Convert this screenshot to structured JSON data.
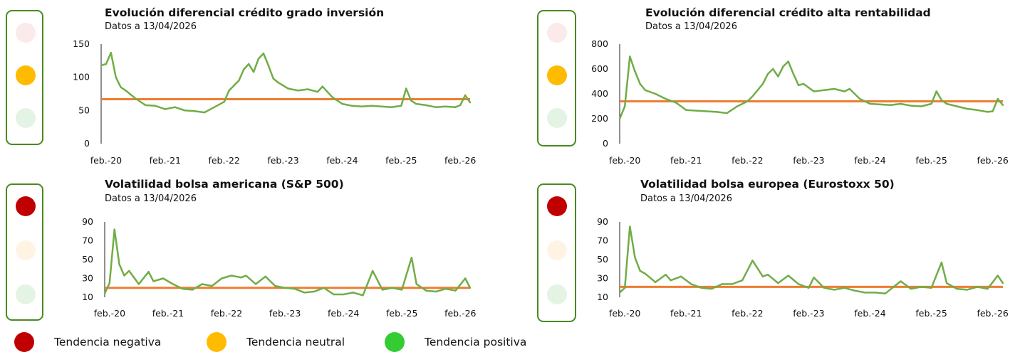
{
  "colors": {
    "red_on": "#c00000",
    "red_off": "#fbeaea",
    "amber_on": "#ffbb00",
    "amber_off": "#fff4e4",
    "green_on": "#33cc33",
    "green_off": "#e3f3e4",
    "box_border": "#4a8a1f",
    "series": "#70ad47",
    "reference": "#ed7d31"
  },
  "legend": {
    "negative": "Tendencia negativa",
    "neutral": "Tendencia neutral",
    "positive": "Tendencia positiva"
  },
  "panels": [
    {
      "title": "Evolución diferencial crédito grado inversión",
      "subtitle": "Datos a 13/04/2026",
      "active_light": "amber"
    },
    {
      "title": "Evolución diferencial crédito alta rentabilidad",
      "subtitle": "Datos a 13/04/2026",
      "active_light": "amber"
    },
    {
      "title": "Volatilidad bolsa americana (S&P 500)",
      "subtitle": "Datos a 13/04/2026",
      "active_light": "red"
    },
    {
      "title": "Volatilidad bolsa europea (Eurostoxx 50)",
      "subtitle": "Datos a 13/04/2026",
      "active_light": "red"
    }
  ],
  "chart_data": [
    {
      "type": "line",
      "title": "Evolución diferencial crédito grado inversión",
      "subtitle": "Datos a 13/04/2026",
      "x_tick_labels": [
        "feb.-20",
        "feb.-21",
        "feb.-22",
        "feb.-23",
        "feb.-24",
        "feb.-25",
        "feb.-26"
      ],
      "y_ticks": [
        0,
        50,
        100,
        150
      ],
      "ylim": [
        0,
        150
      ],
      "xlim": [
        "2020-01",
        "2026-04"
      ],
      "reference_line": 67,
      "series": [
        {
          "x": [
            "2020-01",
            "2020-02",
            "2020-03",
            "2020-04",
            "2020-05",
            "2020-06",
            "2020-08",
            "2020-10",
            "2020-12",
            "2021-02",
            "2021-04",
            "2021-06",
            "2021-08",
            "2021-10",
            "2021-12",
            "2022-02",
            "2022-03",
            "2022-05",
            "2022-06",
            "2022-07",
            "2022-08",
            "2022-09",
            "2022-10",
            "2022-11",
            "2022-12",
            "2023-01",
            "2023-03",
            "2023-05",
            "2023-07",
            "2023-09",
            "2023-10",
            "2023-12",
            "2024-02",
            "2024-04",
            "2024-06",
            "2024-08",
            "2024-10",
            "2024-12",
            "2025-02",
            "2025-03",
            "2025-04",
            "2025-05",
            "2025-07",
            "2025-09",
            "2025-11",
            "2026-01",
            "2026-02",
            "2026-03",
            "2026-04"
          ],
          "values": [
            118,
            120,
            137,
            100,
            85,
            80,
            68,
            58,
            57,
            52,
            55,
            50,
            49,
            47,
            55,
            63,
            80,
            95,
            112,
            120,
            108,
            128,
            136,
            118,
            98,
            92,
            83,
            80,
            82,
            78,
            86,
            70,
            60,
            57,
            56,
            57,
            56,
            55,
            57,
            83,
            65,
            60,
            58,
            55,
            56,
            55,
            58,
            73,
            62
          ]
        }
      ]
    },
    {
      "type": "line",
      "title": "Evolución diferencial crédito alta rentabilidad",
      "subtitle": "Datos a 13/04/2026",
      "x_tick_labels": [
        "feb.-20",
        "feb.-21",
        "feb.-22",
        "feb.-23",
        "feb.-24",
        "feb.-25",
        "feb.-26"
      ],
      "y_ticks": [
        0,
        200,
        400,
        600,
        800
      ],
      "ylim": [
        0,
        800
      ],
      "xlim": [
        "2020-01",
        "2026-04"
      ],
      "reference_line": 340,
      "series": [
        {
          "x": [
            "2020-01",
            "2020-02",
            "2020-03",
            "2020-04",
            "2020-05",
            "2020-06",
            "2020-08",
            "2020-10",
            "2020-12",
            "2021-02",
            "2021-04",
            "2021-06",
            "2021-08",
            "2021-10",
            "2021-12",
            "2022-02",
            "2022-03",
            "2022-05",
            "2022-06",
            "2022-07",
            "2022-08",
            "2022-09",
            "2022-10",
            "2022-11",
            "2022-12",
            "2023-01",
            "2023-03",
            "2023-05",
            "2023-07",
            "2023-09",
            "2023-10",
            "2023-12",
            "2024-02",
            "2024-04",
            "2024-06",
            "2024-08",
            "2024-10",
            "2024-12",
            "2025-02",
            "2025-03",
            "2025-04",
            "2025-05",
            "2025-07",
            "2025-09",
            "2025-11",
            "2026-01",
            "2026-02",
            "2026-03",
            "2026-04"
          ],
          "values": [
            200,
            300,
            700,
            580,
            480,
            430,
            400,
            360,
            330,
            270,
            265,
            260,
            255,
            245,
            300,
            340,
            380,
            480,
            560,
            600,
            540,
            620,
            660,
            560,
            470,
            480,
            420,
            430,
            440,
            420,
            440,
            360,
            320,
            315,
            310,
            320,
            305,
            300,
            320,
            420,
            350,
            320,
            300,
            280,
            270,
            255,
            260,
            360,
            310
          ]
        }
      ]
    },
    {
      "type": "line",
      "title": "Volatilidad bolsa americana (S&P 500)",
      "subtitle": "Datos a 13/04/2026",
      "x_tick_labels": [
        "feb.-20",
        "feb.-21",
        "feb.-22",
        "feb.-23",
        "feb.-24",
        "feb.-25",
        "feb.-26"
      ],
      "y_ticks": [
        10,
        30,
        50,
        70,
        90
      ],
      "ylim": [
        10,
        90
      ],
      "xlim": [
        "2020-01",
        "2026-04"
      ],
      "reference_line": 20,
      "series": [
        {
          "x": [
            "2020-01",
            "2020-02",
            "2020-03",
            "2020-04",
            "2020-05",
            "2020-06",
            "2020-08",
            "2020-10",
            "2020-11",
            "2021-01",
            "2021-03",
            "2021-05",
            "2021-07",
            "2021-09",
            "2021-11",
            "2022-01",
            "2022-03",
            "2022-05",
            "2022-06",
            "2022-08",
            "2022-10",
            "2022-12",
            "2023-02",
            "2023-04",
            "2023-06",
            "2023-08",
            "2023-10",
            "2023-12",
            "2024-02",
            "2024-04",
            "2024-06",
            "2024-08",
            "2024-10",
            "2024-12",
            "2025-02",
            "2025-04",
            "2025-05",
            "2025-07",
            "2025-09",
            "2025-11",
            "2026-01",
            "2026-03",
            "2026-04"
          ],
          "values": [
            14,
            25,
            82,
            45,
            33,
            38,
            24,
            37,
            27,
            30,
            24,
            19,
            18,
            24,
            22,
            30,
            33,
            31,
            33,
            24,
            32,
            22,
            20,
            19,
            15,
            16,
            20,
            13,
            13,
            15,
            12,
            38,
            18,
            20,
            18,
            52,
            24,
            17,
            16,
            19,
            17,
            30,
            20
          ]
        }
      ]
    },
    {
      "type": "line",
      "title": "Volatilidad bolsa europea (Eurostoxx 50)",
      "subtitle": "Datos a 13/04/2026",
      "x_tick_labels": [
        "feb.-20",
        "feb.-21",
        "feb.-22",
        "feb.-23",
        "feb.-24",
        "feb.-25",
        "feb.-26"
      ],
      "y_ticks": [
        10,
        30,
        50,
        70,
        90
      ],
      "ylim": [
        10,
        90
      ],
      "xlim": [
        "2020-01",
        "2026-04"
      ],
      "reference_line": 21,
      "series": [
        {
          "x": [
            "2020-01",
            "2020-02",
            "2020-03",
            "2020-04",
            "2020-05",
            "2020-06",
            "2020-08",
            "2020-10",
            "2020-11",
            "2021-01",
            "2021-03",
            "2021-05",
            "2021-07",
            "2021-09",
            "2021-11",
            "2022-01",
            "2022-03",
            "2022-05",
            "2022-06",
            "2022-08",
            "2022-10",
            "2022-12",
            "2023-02",
            "2023-03",
            "2023-05",
            "2023-07",
            "2023-09",
            "2023-11",
            "2024-01",
            "2024-03",
            "2024-05",
            "2024-08",
            "2024-10",
            "2024-12",
            "2025-02",
            "2025-04",
            "2025-05",
            "2025-07",
            "2025-09",
            "2025-11",
            "2026-01",
            "2026-03",
            "2026-04"
          ],
          "values": [
            15,
            20,
            85,
            52,
            38,
            35,
            26,
            34,
            28,
            32,
            24,
            20,
            19,
            24,
            24,
            28,
            49,
            32,
            34,
            25,
            33,
            24,
            20,
            31,
            20,
            18,
            20,
            17,
            15,
            15,
            14,
            27,
            19,
            21,
            20,
            47,
            25,
            19,
            18,
            21,
            19,
            33,
            25
          ]
        }
      ]
    }
  ]
}
